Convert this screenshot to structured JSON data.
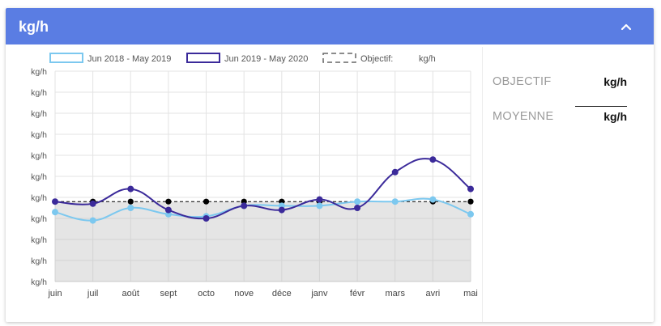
{
  "header": {
    "title": "kg/h"
  },
  "side_panel": {
    "objectif_label": "OBJECTIF",
    "objectif_value": "kg/h",
    "moyenne_label": "MOYENNE",
    "moyenne_value": "kg/h"
  },
  "colors": {
    "header": "#5a7de3",
    "series1": "#7cc8ef",
    "series2": "#3b2a9a",
    "target": "#000000",
    "fill": "#e5e5e5"
  },
  "chart_data": {
    "type": "line",
    "categories": [
      "juin",
      "juil",
      "août",
      "sept",
      "octo",
      "nove",
      "déce",
      "janv",
      "févr",
      "mars",
      "avri",
      "mai"
    ],
    "y_tick_labels": [
      "kg/h",
      "kg/h",
      "kg/h",
      "kg/h",
      "kg/h",
      "kg/h",
      "kg/h",
      "kg/h",
      "kg/h",
      "kg/h",
      "kg/h"
    ],
    "ylim": [
      0,
      10
    ],
    "grid": true,
    "legend_position": "top",
    "legend": [
      "Jun 2018 - May 2019",
      "Jun 2019 - May 2020",
      "Objectif:",
      "kg/h"
    ],
    "series": [
      {
        "name": "Jun 2018 - May 2019",
        "values": [
          3.3,
          2.9,
          3.5,
          3.2,
          3.1,
          3.6,
          3.6,
          3.6,
          3.8,
          3.8,
          3.9,
          3.2
        ]
      },
      {
        "name": "Jun 2019 - May 2020",
        "values": [
          3.8,
          3.7,
          4.4,
          3.4,
          3.0,
          3.6,
          3.4,
          3.9,
          3.5,
          5.2,
          5.8,
          4.4
        ]
      },
      {
        "name": "Objectif",
        "values": [
          3.8,
          3.8,
          3.8,
          3.8,
          3.8,
          3.8,
          3.8,
          3.8,
          3.8,
          3.8,
          3.8,
          3.8
        ]
      }
    ]
  }
}
